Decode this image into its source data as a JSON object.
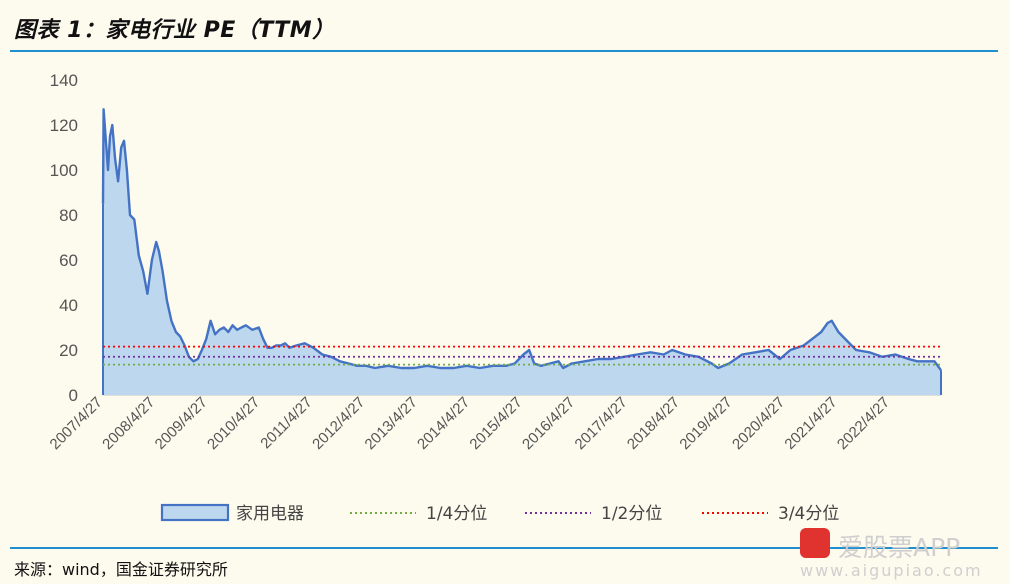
{
  "figure_title": "图表 1：家电行业 PE（TTM）",
  "source_note": "来源：wind，国金证券研究所",
  "watermark": {
    "brand": "爱股票APP",
    "url": "www.aigupiao.com"
  },
  "colors": {
    "series_line": "#4472c4",
    "series_fill": "#bdd7ee",
    "q1": "#70ad47",
    "q2": "#7030a0",
    "q3": "#ff0000",
    "rule": "#1f8fd0"
  },
  "chart_data": {
    "type": "area",
    "ylim": [
      0,
      140
    ],
    "yticks": [
      0,
      20,
      40,
      60,
      80,
      100,
      120,
      140
    ],
    "xticks": [
      "2007/4/27",
      "2008/4/27",
      "2009/4/27",
      "2010/4/27",
      "2011/4/27",
      "2012/4/27",
      "2013/4/27",
      "2014/4/27",
      "2015/4/27",
      "2016/4/27",
      "2017/4/27",
      "2018/4/27",
      "2019/4/27",
      "2020/4/27",
      "2021/4/27",
      "2022/4/27"
    ],
    "legend_position": "bottom",
    "series": [
      {
        "name": "家用电器",
        "x": [
          "2007/4/27",
          "2007/5/1",
          "2007/6/1",
          "2007/6/15",
          "2007/7/1",
          "2007/7/20",
          "2007/8/10",
          "2007/9/1",
          "2007/9/20",
          "2007/10/10",
          "2007/11/1",
          "2007/12/1",
          "2008/1/1",
          "2008/2/1",
          "2008/3/1",
          "2008/4/1",
          "2008/5/1",
          "2008/5/20",
          "2008/6/15",
          "2008/7/15",
          "2008/8/15",
          "2008/9/15",
          "2008/10/15",
          "2008/11/15",
          "2008/12/15",
          "2009/1/15",
          "2009/2/15",
          "2009/3/15",
          "2009/4/15",
          "2009/5/15",
          "2009/6/15",
          "2009/7/15",
          "2009/8/15",
          "2009/9/15",
          "2009/10/15",
          "2009/11/15",
          "2009/12/15",
          "2010/1/15",
          "2010/3/1",
          "2010/4/15",
          "2010/5/15",
          "2010/6/15",
          "2010/7/15",
          "2010/8/15",
          "2010/9/15",
          "2010/10/15",
          "2010/11/15",
          "2011/1/1",
          "2011/3/1",
          "2011/5/1",
          "2011/7/1",
          "2011/9/1",
          "2011/11/1",
          "2012/1/1",
          "2012/3/1",
          "2012/5/1",
          "2012/7/1",
          "2012/10/1",
          "2013/1/1",
          "2013/4/1",
          "2013/7/1",
          "2013/10/1",
          "2014/1/1",
          "2014/4/1",
          "2014/7/1",
          "2014/10/1",
          "2015/1/1",
          "2015/3/1",
          "2015/5/1",
          "2015/6/10",
          "2015/7/15",
          "2015/9/1",
          "2015/11/1",
          "2016/1/1",
          "2016/2/1",
          "2016/4/1",
          "2016/7/1",
          "2016/10/1",
          "2017/1/1",
          "2017/4/1",
          "2017/7/1",
          "2017/10/1",
          "2018/1/1",
          "2018/3/1",
          "2018/6/1",
          "2018/9/1",
          "2018/12/1",
          "2019/1/15",
          "2019/4/1",
          "2019/7/1",
          "2019/10/1",
          "2020/1/1",
          "2020/3/20",
          "2020/6/1",
          "2020/9/1",
          "2020/11/1",
          "2021/1/1",
          "2021/2/15",
          "2021/3/15",
          "2021/5/1",
          "2021/7/1",
          "2021/9/1",
          "2021/12/1",
          "2022/3/1",
          "2022/6/1",
          "2022/9/1",
          "2022/11/1",
          "2023/1/1",
          "2023/3/1",
          "2023/4/15"
        ],
        "values": [
          85,
          127,
          100,
          115,
          120,
          105,
          95,
          110,
          113,
          100,
          80,
          78,
          62,
          55,
          45,
          60,
          68,
          64,
          55,
          42,
          33,
          28,
          26,
          22,
          17,
          15,
          16,
          20,
          25,
          33,
          27,
          29,
          30,
          28,
          31,
          29,
          30,
          31,
          29,
          30,
          25,
          21,
          21,
          22,
          22,
          23,
          21,
          22,
          23,
          21,
          18,
          17,
          15,
          14,
          13,
          13,
          12,
          13,
          12,
          12,
          13,
          12,
          12,
          13,
          12,
          13,
          13,
          14,
          18,
          20,
          14,
          13,
          14,
          15,
          12,
          14,
          15,
          16,
          16,
          17,
          18,
          19,
          18,
          20,
          18,
          17,
          14,
          12,
          14,
          18,
          19,
          20,
          16,
          20,
          22,
          25,
          28,
          32,
          33,
          28,
          24,
          20,
          19,
          17,
          18,
          16,
          15,
          15,
          15,
          11
        ]
      }
    ],
    "reference_lines": [
      {
        "name": "1/4分位",
        "value": 13.5,
        "style": "dotted",
        "color": "#70ad47"
      },
      {
        "name": "1/2分位",
        "value": 17.0,
        "style": "dotted",
        "color": "#7030a0"
      },
      {
        "name": "3/4分位",
        "value": 21.5,
        "style": "dotted",
        "color": "#ff0000"
      }
    ]
  }
}
